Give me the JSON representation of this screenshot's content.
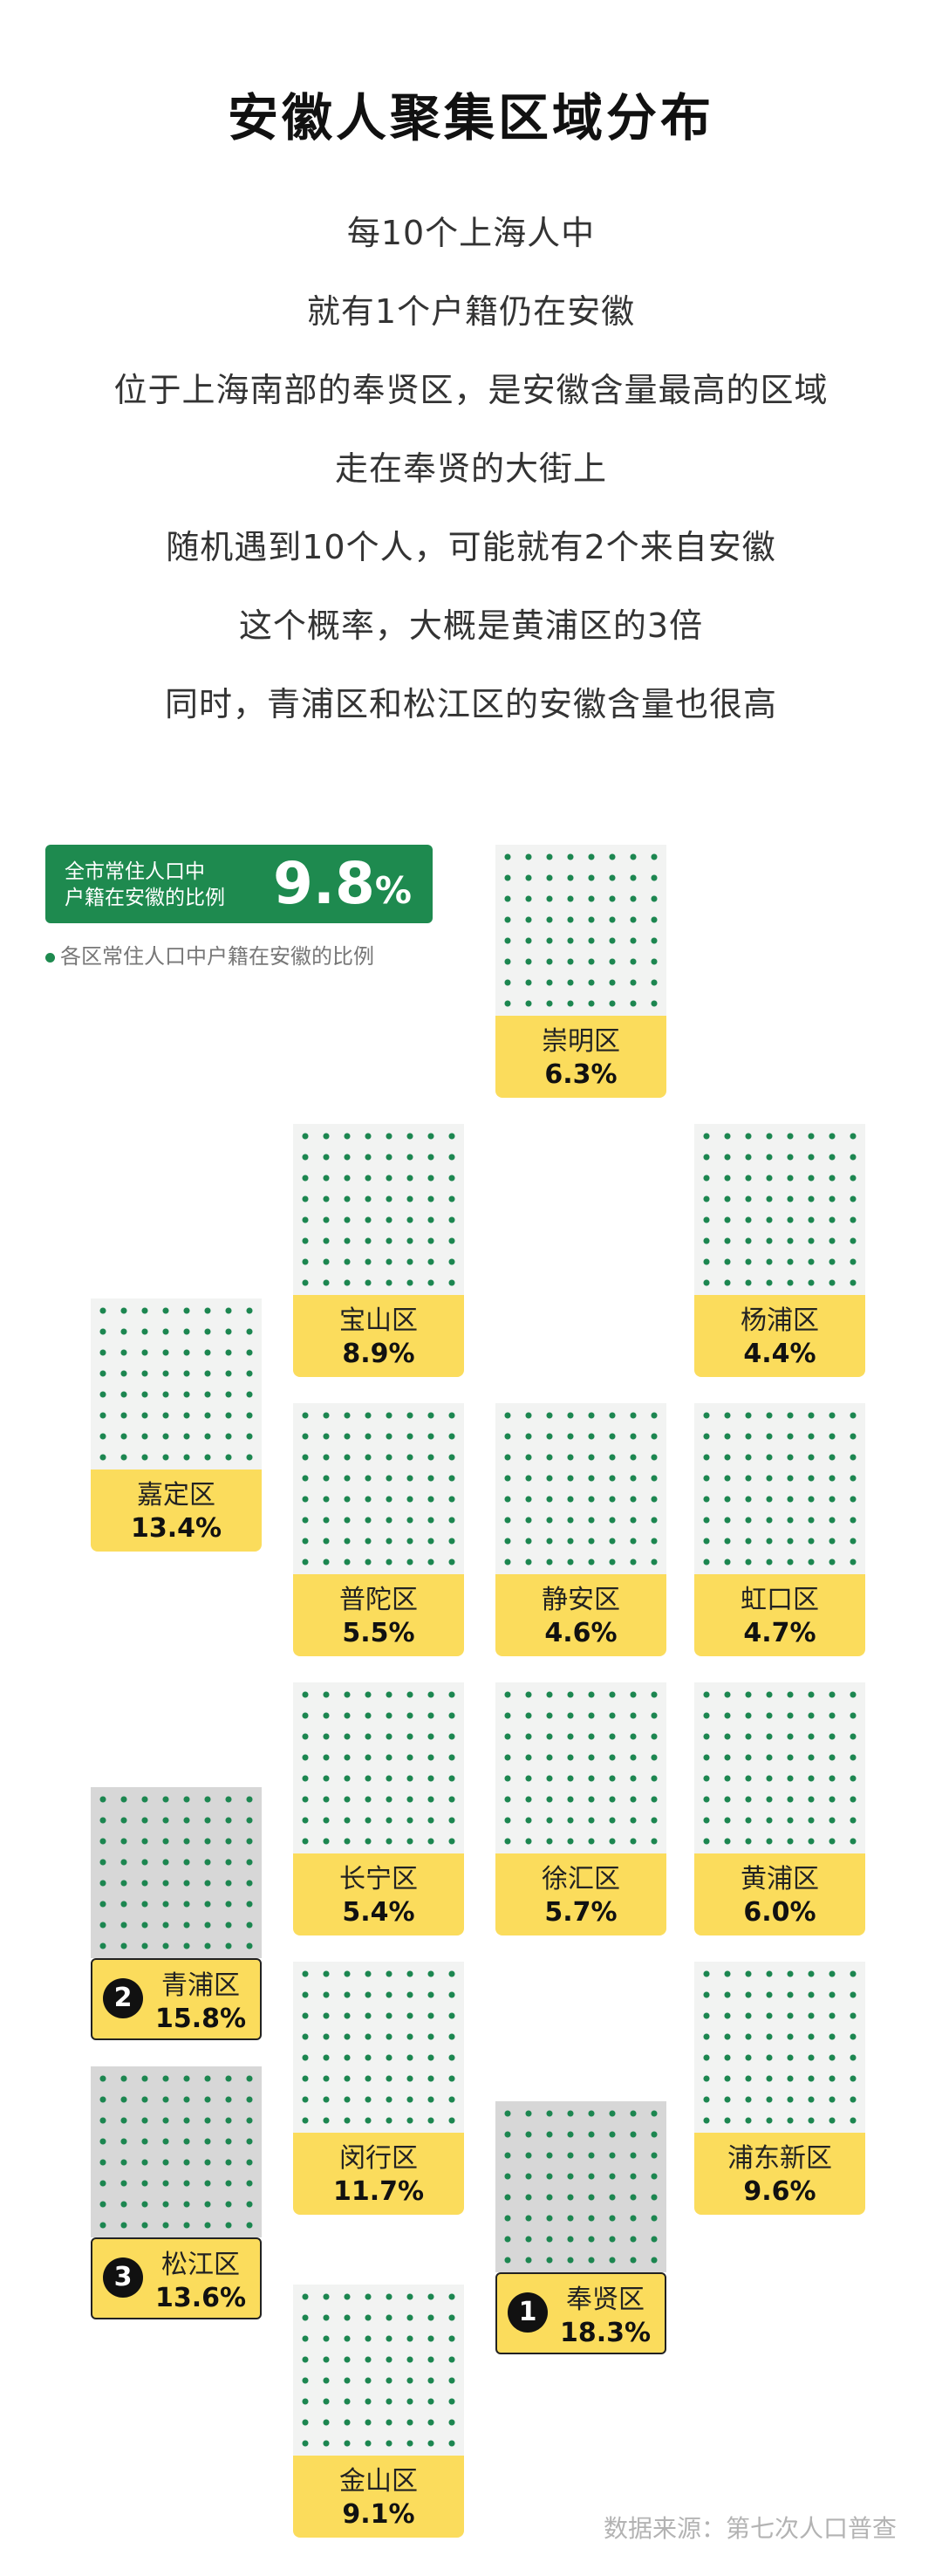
{
  "title": "安徽人聚集区域分布",
  "intro_lines": [
    "每10个上海人中",
    "就有1个户籍仍在安徽",
    "位于上海南部的奉贤区，是安徽含量最高的区域",
    "走在奉贤的大街上",
    "随机遇到10个人，可能就有2个来自安徽",
    "这个概率，大概是黄浦区的3倍",
    "同时，青浦区和松江区的安徽含量也很高"
  ],
  "summary": {
    "label_line1": "全市常住人口中",
    "label_line2": "户籍在安徽的比例",
    "value": "9.8",
    "unit": "%"
  },
  "legend_text": "各区常住人口中户籍在安徽的比例",
  "source": "数据来源：第七次人口普查",
  "colors": {
    "accent_green": "#1e8a4f",
    "label_yellow": "#fbdc5c",
    "top3_pattern_bg": "#d7d7d7"
  },
  "chart_data": {
    "type": "tile-map",
    "unit": "%",
    "districts": [
      {
        "name": "崇明区",
        "value": 6.3,
        "label": "6.3%",
        "rank": ""
      },
      {
        "name": "宝山区",
        "value": 8.9,
        "label": "8.9%",
        "rank": ""
      },
      {
        "name": "杨浦区",
        "value": 4.4,
        "label": "4.4%",
        "rank": ""
      },
      {
        "name": "嘉定区",
        "value": 13.4,
        "label": "13.4%",
        "rank": ""
      },
      {
        "name": "普陀区",
        "value": 5.5,
        "label": "5.5%",
        "rank": ""
      },
      {
        "name": "静安区",
        "value": 4.6,
        "label": "4.6%",
        "rank": ""
      },
      {
        "name": "虹口区",
        "value": 4.7,
        "label": "4.7%",
        "rank": ""
      },
      {
        "name": "长宁区",
        "value": 5.4,
        "label": "5.4%",
        "rank": ""
      },
      {
        "name": "徐汇区",
        "value": 5.7,
        "label": "5.7%",
        "rank": ""
      },
      {
        "name": "黄浦区",
        "value": 6.0,
        "label": "6.0%",
        "rank": ""
      },
      {
        "name": "青浦区",
        "value": 15.8,
        "label": "15.8%",
        "rank": "2"
      },
      {
        "name": "闵行区",
        "value": 11.7,
        "label": "11.7%",
        "rank": ""
      },
      {
        "name": "浦东新区",
        "value": 9.6,
        "label": "9.6%",
        "rank": ""
      },
      {
        "name": "松江区",
        "value": 13.6,
        "label": "13.6%",
        "rank": "3"
      },
      {
        "name": "奉贤区",
        "value": 18.3,
        "label": "18.3%",
        "rank": "1"
      },
      {
        "name": "金山区",
        "value": 9.1,
        "label": "9.1%",
        "rank": ""
      }
    ]
  }
}
